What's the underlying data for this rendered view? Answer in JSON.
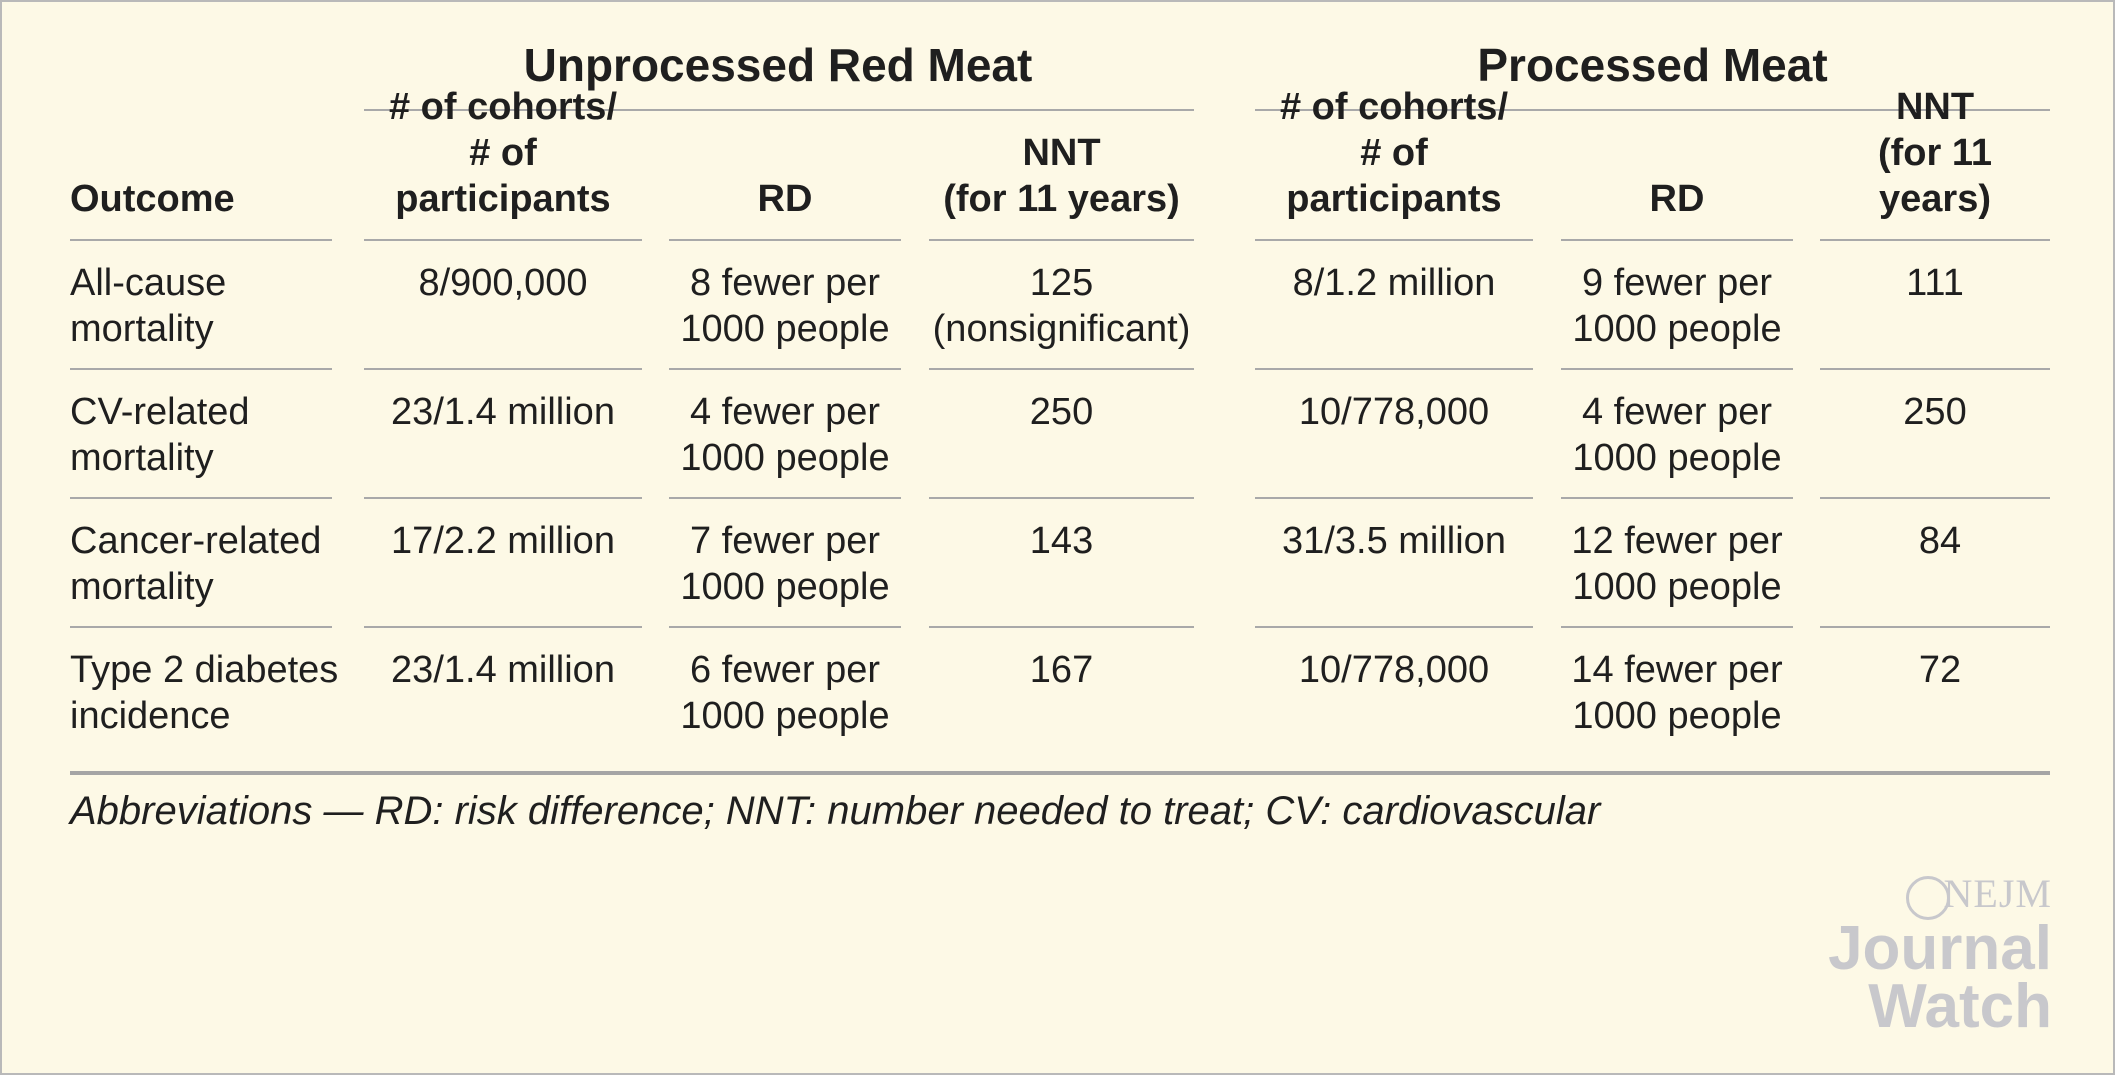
{
  "table": {
    "groups": {
      "unprocessed": "Unprocessed Red Meat",
      "processed": "Processed Meat"
    },
    "headers": {
      "outcome": "Outcome",
      "cohorts_line1": "# of cohorts/",
      "cohorts_line2": "# of participants",
      "rd": "RD",
      "nnt_line1": "NNT",
      "nnt_line2": "(for 11 years)"
    },
    "rows": [
      {
        "outcome_l1": "All-cause",
        "outcome_l2": "mortality",
        "u_cohorts": "8/900,000",
        "u_rd_l1": "8 fewer per",
        "u_rd_l2": "1000 people",
        "u_nnt_l1": "125",
        "u_nnt_l2": "(nonsignificant)",
        "p_cohorts": "8/1.2 million",
        "p_rd_l1": "9 fewer per",
        "p_rd_l2": "1000 people",
        "p_nnt": "111"
      },
      {
        "outcome_l1": "CV-related",
        "outcome_l2": "mortality",
        "u_cohorts": "23/1.4 million",
        "u_rd_l1": "4 fewer per",
        "u_rd_l2": "1000 people",
        "u_nnt_l1": "250",
        "u_nnt_l2": "",
        "p_cohorts": "10/778,000",
        "p_rd_l1": "4 fewer per",
        "p_rd_l2": "1000 people",
        "p_nnt": "250"
      },
      {
        "outcome_l1": "Cancer-related",
        "outcome_l2": "mortality",
        "u_cohorts": "17/2.2 million",
        "u_rd_l1": "7 fewer per",
        "u_rd_l2": "1000 people",
        "u_nnt_l1": "143",
        "u_nnt_l2": "",
        "p_cohorts": "31/3.5 million",
        "p_rd_l1": "12 fewer per",
        "p_rd_l2": "1000 people",
        "p_nnt": "84"
      },
      {
        "outcome_l1": "Type 2 diabetes",
        "outcome_l2": "incidence",
        "u_cohorts": "23/1.4 million",
        "u_rd_l1": "6 fewer per",
        "u_rd_l2": "1000 people",
        "u_nnt_l1": "167",
        "u_nnt_l2": "",
        "p_cohorts": "10/778,000",
        "p_rd_l1": "14 fewer per",
        "p_rd_l2": "1000 people",
        "p_nnt": "72"
      }
    ]
  },
  "footnote": "Abbreviations — RD: risk difference; NNT: number needed to treat; CV: cardiovascular",
  "logo": {
    "top": "NEJM",
    "line1": "Journal",
    "line2": "Watch"
  },
  "colors": {
    "background": "#fdf9e6",
    "rule": "#a9a9a9",
    "logo": "#c8c8cc"
  }
}
